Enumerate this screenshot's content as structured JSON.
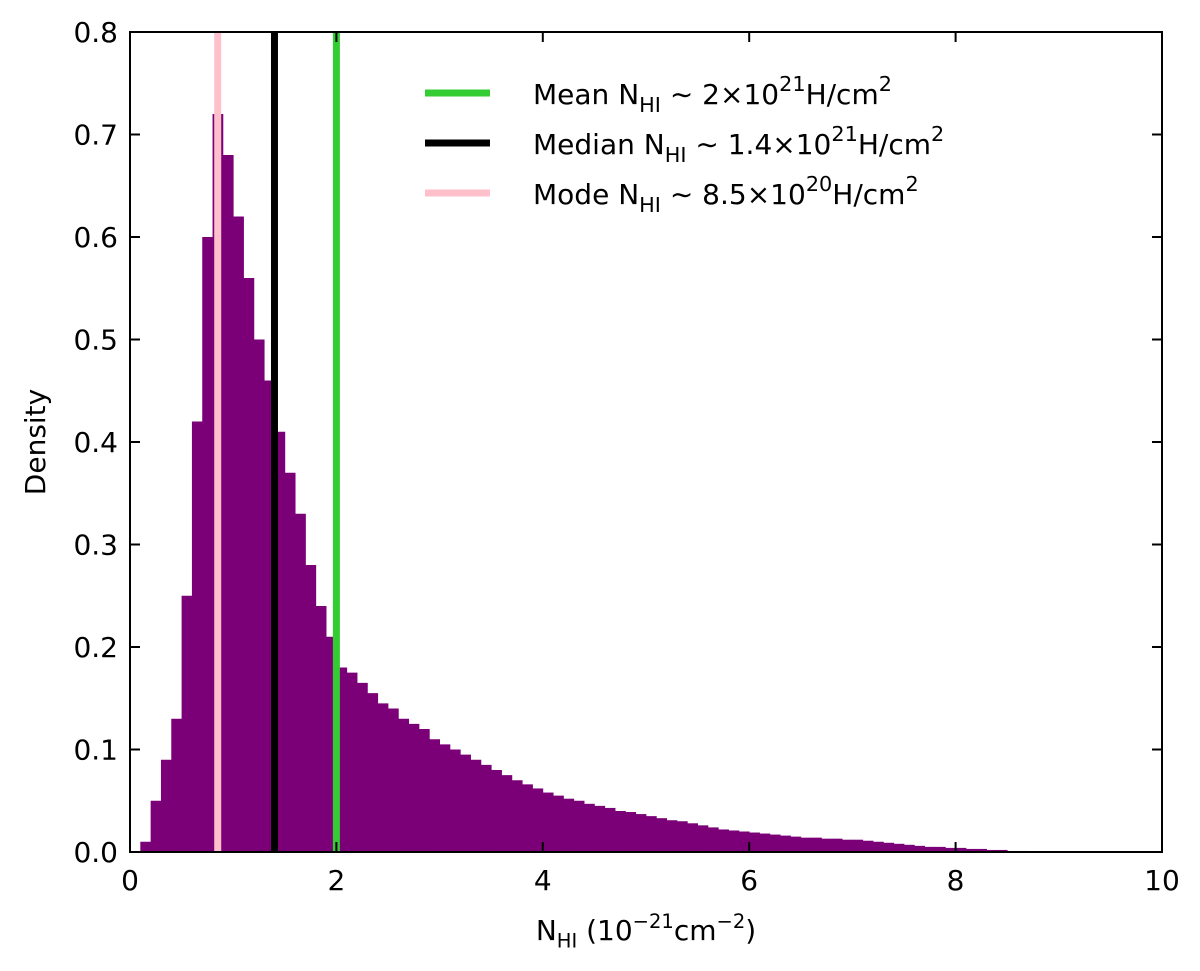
{
  "chart_data": {
    "type": "histogram",
    "xlabel": [
      "N",
      "HI",
      " (10",
      "−21",
      "cm",
      "−2",
      ")"
    ],
    "ylabel": "Density",
    "color": "#7b0077",
    "bins": [
      0.1,
      0.2,
      0.3,
      0.4,
      0.5,
      0.6,
      0.7,
      0.8,
      0.9,
      1.0,
      1.1,
      1.2,
      1.3,
      1.4,
      1.5,
      1.6,
      1.7,
      1.8,
      1.9,
      2.0,
      2.1,
      2.2,
      2.3,
      2.4,
      2.5,
      2.6,
      2.7,
      2.8,
      2.9,
      3.0,
      3.1,
      3.2,
      3.3,
      3.4,
      3.5,
      3.6,
      3.7,
      3.8,
      3.9,
      4.0,
      4.1,
      4.2,
      4.3,
      4.4,
      4.5,
      4.6,
      4.7,
      4.8,
      4.9,
      5.0,
      5.1,
      5.2,
      5.3,
      5.4,
      5.5,
      5.6,
      5.7,
      5.8,
      5.9,
      6.0,
      6.1,
      6.2,
      6.3,
      6.4,
      6.5,
      6.6,
      6.7,
      6.8,
      6.9,
      7.0,
      7.1,
      7.2,
      7.3,
      7.4,
      7.5,
      7.6,
      7.7,
      7.8,
      7.9,
      8.0,
      8.1,
      8.2,
      8.3,
      8.4,
      8.5,
      8.6,
      8.7
    ],
    "values": [
      0.01,
      0.05,
      0.09,
      0.13,
      0.25,
      0.42,
      0.6,
      0.72,
      0.68,
      0.62,
      0.56,
      0.5,
      0.46,
      0.41,
      0.37,
      0.33,
      0.28,
      0.24,
      0.21,
      0.18,
      0.175,
      0.165,
      0.155,
      0.145,
      0.14,
      0.13,
      0.125,
      0.12,
      0.11,
      0.105,
      0.1,
      0.095,
      0.09,
      0.085,
      0.08,
      0.075,
      0.07,
      0.066,
      0.062,
      0.058,
      0.055,
      0.052,
      0.05,
      0.047,
      0.045,
      0.043,
      0.04,
      0.039,
      0.037,
      0.035,
      0.033,
      0.031,
      0.03,
      0.028,
      0.026,
      0.024,
      0.022,
      0.021,
      0.02,
      0.019,
      0.018,
      0.017,
      0.016,
      0.015,
      0.014,
      0.014,
      0.013,
      0.013,
      0.012,
      0.012,
      0.011,
      0.01,
      0.009,
      0.008,
      0.007,
      0.006,
      0.005,
      0.005,
      0.004,
      0.004,
      0.003,
      0.003,
      0.002,
      0.002,
      0.001,
      0.001
    ],
    "vlines": [
      {
        "name": [
          "Mean N",
          "HI",
          " ∼ 2×10",
          "21",
          "H/cm",
          "2"
        ],
        "color": "#33cc33",
        "value": 2
      },
      {
        "name": [
          "Median N",
          "HI",
          " ∼ 1.4×10",
          "21",
          "H/cm",
          "2"
        ],
        "color": "#000000",
        "value": 1.4
      },
      {
        "name": [
          "Mode N",
          "HI",
          " ∼ 8.5×10",
          "20",
          "H/cm",
          "2"
        ],
        "color": "#ffc0cb",
        "value": 0.85
      }
    ],
    "xlim": [
      0,
      10
    ],
    "xticks": [
      0,
      2,
      4,
      6,
      8,
      10
    ],
    "ylim": [
      0,
      0.8
    ],
    "yticks": [
      {
        "value": 0,
        "label": "0.0"
      },
      0.1,
      0.2,
      0.3,
      0.4,
      0.5,
      0.6,
      0.7,
      0.8
    ],
    "legend": "upper right"
  }
}
